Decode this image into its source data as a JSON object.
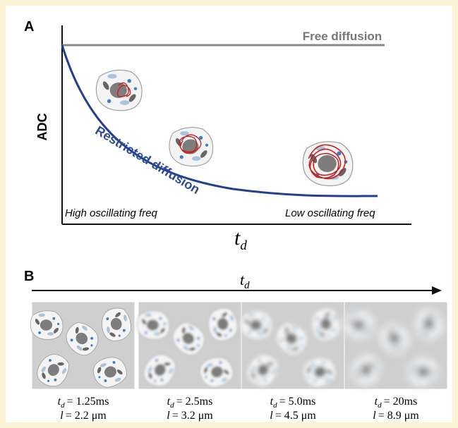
{
  "panel_a": {
    "label": "A",
    "y_axis_label": "ADC",
    "free_label": "Free diffusion",
    "restricted_label": "Restricted diffusion",
    "left_label": "High oscillating freq",
    "right_label": "Low oscillating freq"
  },
  "time_symbol": {
    "base": "t",
    "sub": "d"
  },
  "length_symbol": "l",
  "panel_b": {
    "label": "B",
    "captions": [
      {
        "time": "= 1.25ms",
        "length": "= 2.2 μm"
      },
      {
        "time": "= 2.5ms",
        "length": "= 3.2 μm"
      },
      {
        "time": "= 5.0ms",
        "length": "= 4.5 μm"
      },
      {
        "time": "= 20ms",
        "length": "= 8.9 μm"
      }
    ]
  }
}
